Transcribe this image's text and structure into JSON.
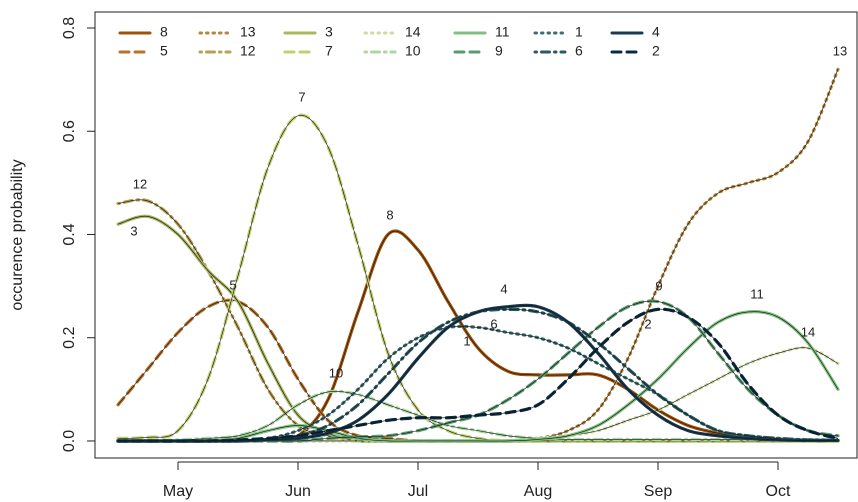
{
  "chart_data": {
    "type": "line",
    "y_label": "occurence probability",
    "categories": [
      null,
      null,
      "May",
      null,
      null,
      null,
      "Jun",
      null,
      null,
      null,
      "Jul",
      null,
      null,
      null,
      "Aug",
      null,
      null,
      null,
      "Sep",
      null,
      null,
      null,
      "Oct",
      null,
      null
    ],
    "ylim": [
      -0.033,
      0.831
    ],
    "yticks": [
      {
        "value": 0,
        "label": "0.0"
      },
      {
        "value": 0.2,
        "label": "0.2"
      },
      {
        "value": 0.4,
        "label": "0.4"
      },
      {
        "value": 0.6,
        "label": "0.6"
      },
      {
        "value": 0.8,
        "label": "0.8"
      }
    ],
    "legend": "top-left",
    "series": [
      {
        "name": "8",
        "color": "#a0520a",
        "linestyle": "solid",
        "values": [
          0,
          0,
          0,
          0,
          0,
          0.002,
          0.01,
          0.08,
          0.25,
          0.4,
          0.37,
          0.27,
          0.18,
          0.135,
          0.128,
          0.128,
          0.128,
          0.1,
          0.06,
          0.03,
          0.015,
          0.005,
          0.002,
          0.001,
          0.001
        ]
      },
      {
        "name": "5",
        "color": "#b8722a",
        "linestyle": "dashed",
        "values": [
          0.07,
          0.14,
          0.21,
          0.26,
          0.27,
          0.22,
          0.12,
          0.04,
          0.01,
          0.005,
          0,
          0,
          0,
          0,
          0,
          0,
          0,
          0,
          0,
          0,
          0,
          0,
          0,
          0,
          0
        ]
      },
      {
        "name": "13",
        "color": "#b8863a",
        "linestyle": "dotted",
        "values": [
          0,
          0,
          0,
          0,
          0,
          0,
          0,
          0,
          0,
          0,
          0,
          0,
          0,
          0,
          0.005,
          0.02,
          0.06,
          0.16,
          0.3,
          0.42,
          0.48,
          0.5,
          0.52,
          0.58,
          0.72
        ]
      },
      {
        "name": "12",
        "color": "#b8a050",
        "linestyle": "dotdash",
        "values": [
          0.46,
          0.465,
          0.42,
          0.33,
          0.22,
          0.1,
          0.03,
          0.01,
          0,
          0,
          0,
          0,
          0,
          0,
          0,
          0,
          0,
          0,
          0,
          0,
          0,
          0,
          0,
          0,
          0
        ]
      },
      {
        "name": "3",
        "color": "#a8b860",
        "linestyle": "solid",
        "values": [
          0.42,
          0.435,
          0.4,
          0.33,
          0.27,
          0.15,
          0.05,
          0.015,
          0,
          0,
          0,
          0,
          0,
          0,
          0,
          0,
          0,
          0,
          0,
          0,
          0,
          0,
          0,
          0,
          0
        ]
      },
      {
        "name": "7",
        "color": "#bfd070",
        "linestyle": "dashed",
        "values": [
          0.005,
          0.007,
          0.02,
          0.12,
          0.32,
          0.53,
          0.63,
          0.57,
          0.38,
          0.17,
          0.06,
          0.02,
          0.005,
          0,
          0,
          0,
          0,
          0,
          0,
          0,
          0,
          0,
          0,
          0,
          0
        ]
      },
      {
        "name": "14",
        "color": "#cfdca0",
        "linestyle": "dotted",
        "values": [
          0,
          0,
          0,
          0,
          0,
          0,
          0,
          0,
          0,
          0,
          0,
          0,
          0,
          0,
          0.005,
          0.01,
          0.02,
          0.04,
          0.06,
          0.09,
          0.12,
          0.15,
          0.17,
          0.18,
          0.15
        ]
      },
      {
        "name": "10",
        "color": "#a8d8a0",
        "linestyle": "dotdash",
        "values": [
          0,
          0,
          0.002,
          0.005,
          0.01,
          0.03,
          0.07,
          0.095,
          0.09,
          0.07,
          0.05,
          0.03,
          0.02,
          0.01,
          0.005,
          0.003,
          0.003,
          0.003,
          0.003,
          0.003,
          0.003,
          0.003,
          0.003,
          0.003,
          0.003
        ]
      },
      {
        "name": "11",
        "color": "#80c080",
        "linestyle": "solid",
        "values": [
          0,
          0,
          0,
          0,
          0.005,
          0.02,
          0.03,
          0.02,
          0.005,
          0,
          0,
          0,
          0,
          0,
          0.003,
          0.01,
          0.03,
          0.07,
          0.12,
          0.18,
          0.23,
          0.25,
          0.24,
          0.19,
          0.1
        ]
      },
      {
        "name": "9",
        "color": "#5a9a70",
        "linestyle": "dashed",
        "values": [
          0,
          0,
          0,
          0,
          0,
          0,
          0,
          0.005,
          0.008,
          0.01,
          0.02,
          0.035,
          0.05,
          0.08,
          0.12,
          0.17,
          0.22,
          0.26,
          0.27,
          0.24,
          0.17,
          0.1,
          0.05,
          0.02,
          0.01
        ]
      },
      {
        "name": "1",
        "color": "#3a7070",
        "linestyle": "dotted",
        "values": [
          0,
          0,
          0,
          0,
          0,
          0.005,
          0.02,
          0.05,
          0.1,
          0.16,
          0.2,
          0.22,
          0.22,
          0.21,
          0.2,
          0.18,
          0.15,
          0.12,
          0.09,
          0.05,
          0.02,
          0.01,
          0.005,
          0.002,
          0.001
        ]
      },
      {
        "name": "6",
        "color": "#2a5a60",
        "linestyle": "dotdash",
        "values": [
          0,
          0,
          0,
          0,
          0,
          0.003,
          0.01,
          0.03,
          0.07,
          0.13,
          0.19,
          0.23,
          0.25,
          0.255,
          0.25,
          0.23,
          0.19,
          0.14,
          0.09,
          0.05,
          0.02,
          0.01,
          0.005,
          0.002,
          0.001
        ]
      },
      {
        "name": "4",
        "color": "#1a3a50",
        "linestyle": "solid",
        "values": [
          0,
          0,
          0,
          0,
          0,
          0.002,
          0.005,
          0.015,
          0.04,
          0.09,
          0.16,
          0.22,
          0.25,
          0.26,
          0.26,
          0.23,
          0.17,
          0.1,
          0.05,
          0.02,
          0.01,
          0.005,
          0.002,
          0.001,
          0.001
        ]
      },
      {
        "name": "2",
        "color": "#0a2a40",
        "linestyle": "dashed",
        "values": [
          0,
          0,
          0,
          0,
          0.002,
          0.005,
          0.01,
          0.02,
          0.03,
          0.04,
          0.045,
          0.045,
          0.05,
          0.055,
          0.07,
          0.12,
          0.18,
          0.23,
          0.255,
          0.24,
          0.19,
          0.11,
          0.05,
          0.02,
          0.005
        ]
      }
    ],
    "annotations": [
      "12",
      "3",
      "5",
      "7",
      "10",
      "8",
      "4",
      "6",
      "1",
      "9",
      "2",
      "11",
      "14",
      "13"
    ]
  }
}
